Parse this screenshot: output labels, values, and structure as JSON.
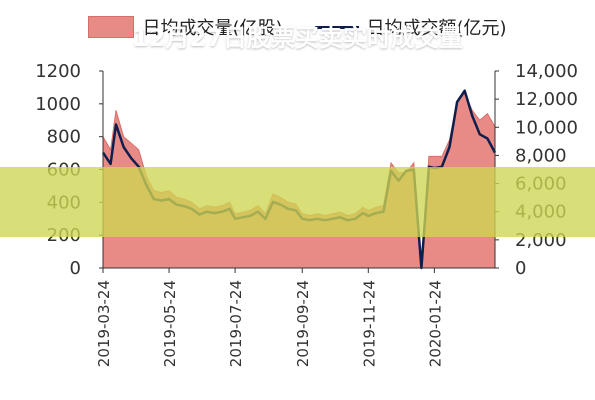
{
  "legend": {
    "series1": "日均成交量(亿股)",
    "series2": "日均成交额(亿元)"
  },
  "banner": {
    "text": "12月27日股票买卖实时成交量"
  },
  "colors": {
    "area_fill": "#e88b86",
    "line": "#0f1e4d",
    "banner": "#ced652"
  },
  "chart_data": {
    "type": "area",
    "grid": false,
    "left_axis": {
      "ylim": [
        0,
        1200
      ],
      "ticks": [
        0,
        200,
        400,
        600,
        800,
        1000,
        1200
      ],
      "tick_labels": [
        "0",
        "200",
        "400",
        "600",
        "800",
        "1000",
        "1200"
      ]
    },
    "right_axis": {
      "ylim": [
        0,
        14000
      ],
      "ticks": [
        0,
        2000,
        4000,
        6000,
        8000,
        10000,
        12000,
        14000
      ],
      "tick_labels": [
        "0",
        "2,000",
        "4,000",
        "6,000",
        "8,000",
        "10,000",
        "12,000",
        "14,000"
      ]
    },
    "x_tick_labels": [
      "2019-03-24",
      "2019-05-24",
      "2019-07-24",
      "2019-09-24",
      "2019-11-24",
      "2020-01-24"
    ],
    "x_tick_dates": [
      "2019-03-24",
      "2019-05-24",
      "2019-07-24",
      "2019-09-24",
      "2019-11-24",
      "2020-01-24"
    ],
    "x_range": [
      "2019-03-24",
      "2020-03-20"
    ],
    "series": [
      {
        "name": "日均成交量(亿股)",
        "kind": "area",
        "axis": "left",
        "x": [
          "2019-03-24",
          "2019-03-31",
          "2019-04-05",
          "2019-04-12",
          "2019-04-19",
          "2019-04-26",
          "2019-05-03",
          "2019-05-10",
          "2019-05-17",
          "2019-05-24",
          "2019-05-31",
          "2019-06-07",
          "2019-06-14",
          "2019-06-21",
          "2019-06-28",
          "2019-07-05",
          "2019-07-12",
          "2019-07-19",
          "2019-07-24",
          "2019-07-31",
          "2019-08-07",
          "2019-08-14",
          "2019-08-21",
          "2019-08-28",
          "2019-09-04",
          "2019-09-11",
          "2019-09-18",
          "2019-09-24",
          "2019-10-01",
          "2019-10-08",
          "2019-10-15",
          "2019-10-22",
          "2019-10-29",
          "2019-11-05",
          "2019-11-12",
          "2019-11-19",
          "2019-11-24",
          "2019-12-01",
          "2019-12-08",
          "2019-12-15",
          "2019-12-22",
          "2019-12-29",
          "2020-01-05",
          "2020-01-12",
          "2020-01-19",
          "2020-01-24",
          "2020-01-31",
          "2020-02-07",
          "2020-02-14",
          "2020-02-21",
          "2020-02-28",
          "2020-03-06",
          "2020-03-13",
          "2020-03-20"
        ],
        "values": [
          800,
          720,
          960,
          800,
          760,
          720,
          560,
          470,
          460,
          470,
          430,
          420,
          400,
          360,
          380,
          370,
          380,
          400,
          330,
          340,
          350,
          380,
          330,
          450,
          430,
          400,
          390,
          330,
          320,
          330,
          320,
          330,
          340,
          320,
          330,
          370,
          350,
          370,
          380,
          640,
          580,
          580,
          640,
          20,
          680,
          680,
          680,
          780,
          1010,
          1060,
          960,
          900,
          940,
          860
        ]
      },
      {
        "name": "日均成交额(亿元)",
        "kind": "line",
        "axis": "right",
        "x": [
          "2019-03-24",
          "2019-03-31",
          "2019-04-05",
          "2019-04-12",
          "2019-04-19",
          "2019-04-26",
          "2019-05-03",
          "2019-05-10",
          "2019-05-17",
          "2019-05-24",
          "2019-05-31",
          "2019-06-07",
          "2019-06-14",
          "2019-06-21",
          "2019-06-28",
          "2019-07-05",
          "2019-07-12",
          "2019-07-19",
          "2019-07-24",
          "2019-07-31",
          "2019-08-07",
          "2019-08-14",
          "2019-08-21",
          "2019-08-28",
          "2019-09-04",
          "2019-09-11",
          "2019-09-18",
          "2019-09-24",
          "2019-10-01",
          "2019-10-08",
          "2019-10-15",
          "2019-10-22",
          "2019-10-29",
          "2019-11-05",
          "2019-11-12",
          "2019-11-19",
          "2019-11-24",
          "2019-12-01",
          "2019-12-08",
          "2019-12-15",
          "2019-12-22",
          "2019-12-29",
          "2020-01-05",
          "2020-01-12",
          "2020-01-19",
          "2020-01-24",
          "2020-01-31",
          "2020-02-07",
          "2020-02-14",
          "2020-02-21",
          "2020-02-28",
          "2020-03-06",
          "2020-03-13",
          "2020-03-20"
        ],
        "values": [
          8200,
          7400,
          10200,
          8600,
          7800,
          7200,
          5900,
          4900,
          4800,
          4900,
          4500,
          4400,
          4200,
          3800,
          4000,
          3900,
          4000,
          4200,
          3500,
          3600,
          3700,
          4000,
          3500,
          4700,
          4500,
          4200,
          4100,
          3500,
          3400,
          3500,
          3400,
          3500,
          3600,
          3400,
          3500,
          3900,
          3700,
          3900,
          4000,
          6900,
          6200,
          6900,
          7000,
          0,
          7200,
          7100,
          7200,
          8600,
          11800,
          12600,
          10800,
          9500,
          9200,
          8200
        ]
      }
    ]
  }
}
